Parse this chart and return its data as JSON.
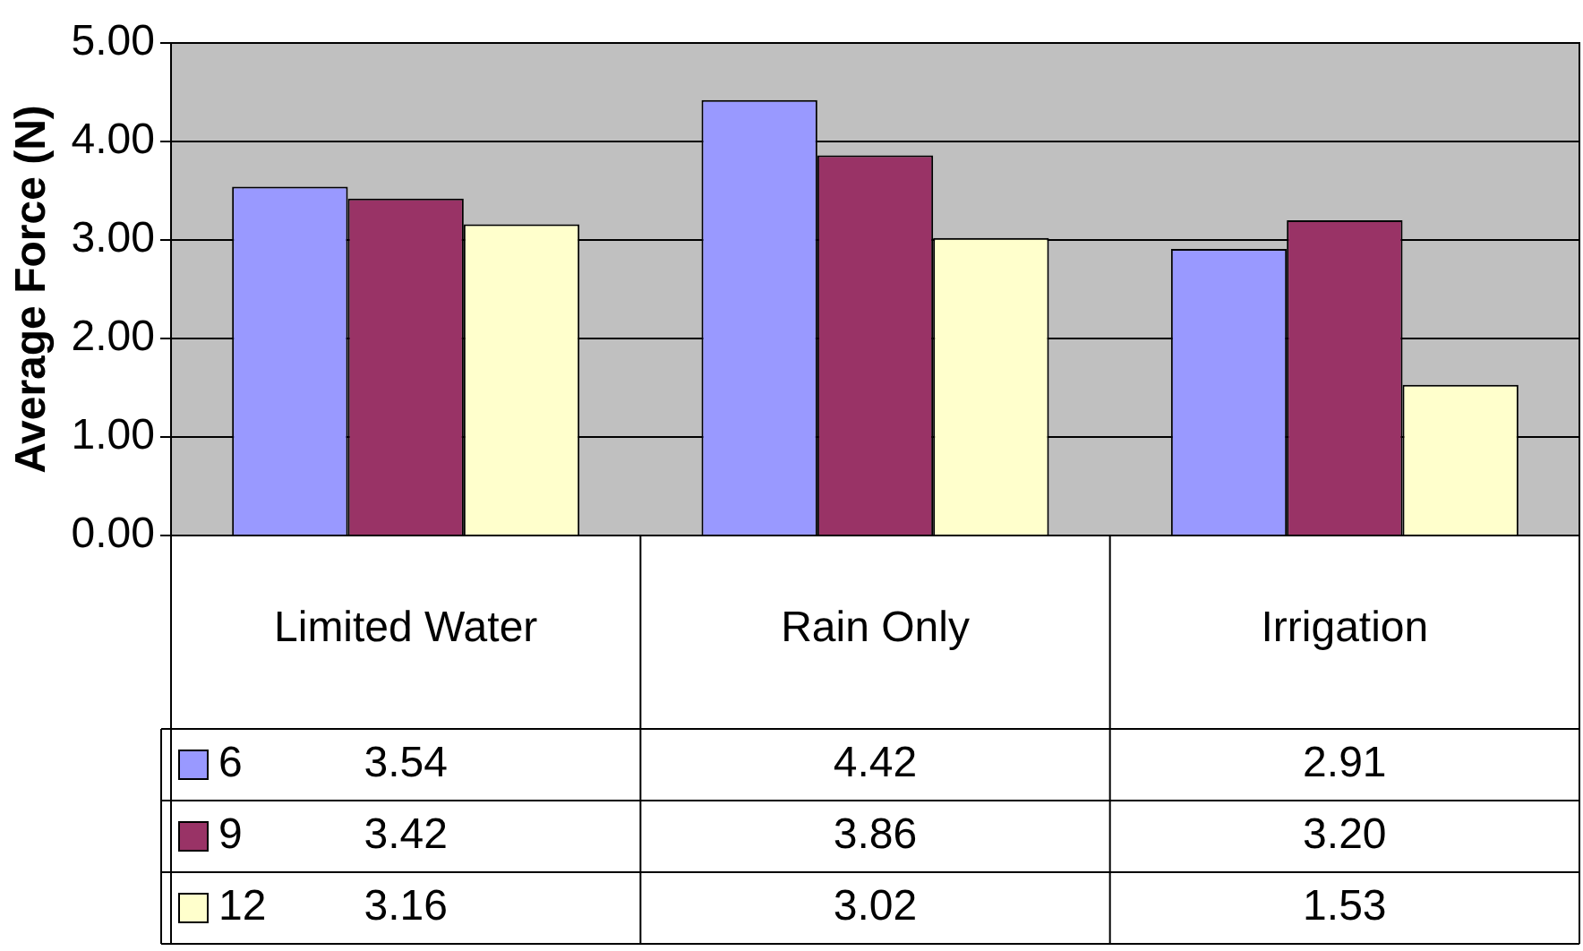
{
  "chart_data": {
    "type": "bar",
    "ylabel": "Average Force (N)",
    "categories": [
      "Limited Water",
      "Rain Only",
      "Irrigation"
    ],
    "series": [
      {
        "name": "6",
        "color": "#9999ff",
        "values": [
          3.54,
          4.42,
          2.91
        ],
        "value_labels": [
          "3.54",
          "4.42",
          "2.91"
        ]
      },
      {
        "name": "9",
        "color": "#993366",
        "values": [
          3.42,
          3.86,
          3.2
        ],
        "value_labels": [
          "3.42",
          "3.86",
          "3.20"
        ]
      },
      {
        "name": "12",
        "color": "#ffffcc",
        "values": [
          3.16,
          3.02,
          1.53
        ],
        "value_labels": [
          "3.16",
          "3.02",
          "1.53"
        ]
      }
    ],
    "ylim": [
      0,
      5
    ],
    "yticks": [
      {
        "value": 0,
        "label": "0.00"
      },
      {
        "value": 1,
        "label": "1.00"
      },
      {
        "value": 2,
        "label": "2.00"
      },
      {
        "value": 3,
        "label": "3.00"
      },
      {
        "value": 4,
        "label": "4.00"
      },
      {
        "value": 5,
        "label": "5.00"
      }
    ],
    "grid": "y",
    "legend": "bottom"
  }
}
